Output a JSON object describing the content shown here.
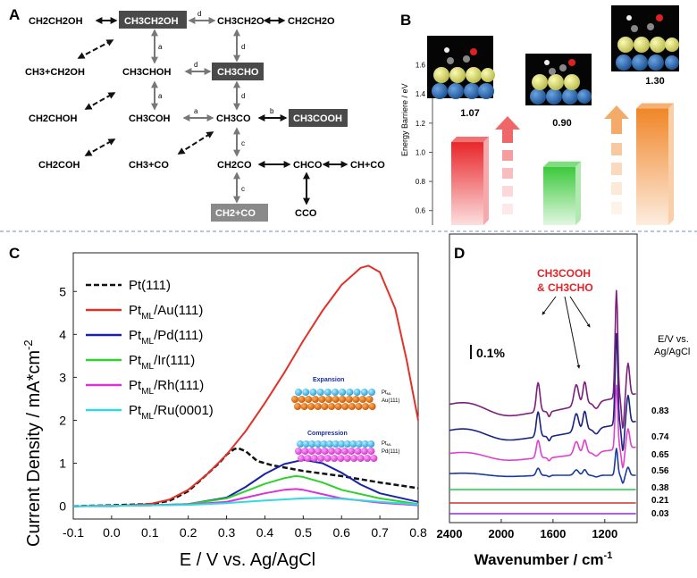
{
  "panel_labels": {
    "a": "A",
    "b": "B",
    "c": "C",
    "d": "D"
  },
  "scheme": {
    "species": {
      "ch2ch2oh": "CH2CH2OH",
      "ch3ch2oh": "CH3CH2OH",
      "ch3ch2o": "CH3CH2O",
      "ch2ch2o": "CH2CH2O",
      "ch3_ch2oh": "CH3+CH2OH",
      "ch3choh": "CH3CHOH",
      "ch3cho": "CH3CHO",
      "ch2choh": "CH2CHOH",
      "ch3coh": "CH3COH",
      "ch3co": "CH3CO",
      "ch3cooh": "CH3COOH",
      "ch2coh": "CH2COH",
      "ch3_co": "CH3+CO",
      "ch2co": "CH2CO",
      "chco": "CHCO",
      "ch_co": "CH+CO",
      "ch2_co": "CH2+CO",
      "cco": "CCO"
    },
    "arrow_labels": {
      "a": "a",
      "b": "b",
      "c": "c",
      "d": "d"
    }
  },
  "chart_data": [
    {
      "panel": "B",
      "type": "bar",
      "ylabel": "Energy Barriere / eV",
      "yticks": [
        0.6,
        0.8,
        1.0,
        1.2,
        1.4,
        1.6
      ],
      "ylim": [
        0.5,
        1.8
      ],
      "values": [
        1.07,
        0.9,
        1.3
      ],
      "value_labels": [
        "1.07",
        "0.90",
        "1.30"
      ],
      "colors": [
        "#e8262a",
        "#3cc93c",
        "#f08628"
      ]
    },
    {
      "panel": "C",
      "type": "line",
      "xlabel": "E / V vs. Ag/AgCl",
      "ylabel": "Current Density / mA*cm",
      "ylabel_sup": "-2",
      "xlim": [
        -0.1,
        0.8
      ],
      "ylim": [
        -0.3,
        5.9
      ],
      "xticks": [
        "-0.1",
        "0.0",
        "0.1",
        "0.2",
        "0.3",
        "0.4",
        "0.5",
        "0.6",
        "0.7",
        "0.8"
      ],
      "yticks": [
        "0",
        "1",
        "2",
        "3",
        "4",
        "5"
      ],
      "series": [
        {
          "name": "Pt(111)",
          "color": "#111111",
          "dash": true,
          "x": [
            -0.1,
            0.0,
            0.1,
            0.15,
            0.2,
            0.25,
            0.28,
            0.3,
            0.32,
            0.33,
            0.35,
            0.38,
            0.42,
            0.5,
            0.6,
            0.7,
            0.8
          ],
          "y": [
            0.0,
            0.02,
            0.05,
            0.12,
            0.35,
            0.75,
            1.0,
            1.2,
            1.33,
            1.35,
            1.28,
            1.05,
            0.95,
            0.82,
            0.7,
            0.55,
            0.42
          ]
        },
        {
          "name": "Au(111)",
          "color": "#e03228",
          "dash": false,
          "x": [
            -0.1,
            0.0,
            0.1,
            0.15,
            0.2,
            0.25,
            0.3,
            0.35,
            0.4,
            0.45,
            0.5,
            0.55,
            0.6,
            0.65,
            0.67,
            0.7,
            0.74,
            0.77,
            0.8
          ],
          "y": [
            0.0,
            0.0,
            0.05,
            0.15,
            0.38,
            0.75,
            1.2,
            1.75,
            2.4,
            3.1,
            3.85,
            4.55,
            5.15,
            5.55,
            5.6,
            5.45,
            4.6,
            3.4,
            2.0
          ]
        },
        {
          "name": "Pd(111)",
          "color": "#1a22a8",
          "dash": false,
          "x": [
            -0.1,
            0.1,
            0.2,
            0.3,
            0.35,
            0.4,
            0.45,
            0.5,
            0.55,
            0.6,
            0.65,
            0.7,
            0.8
          ],
          "y": [
            0.0,
            0.02,
            0.05,
            0.2,
            0.45,
            0.75,
            0.98,
            1.08,
            1.0,
            0.78,
            0.5,
            0.3,
            0.1
          ]
        },
        {
          "name": "Ir(111)",
          "color": "#2ed12e",
          "dash": false,
          "x": [
            -0.1,
            0.1,
            0.2,
            0.3,
            0.35,
            0.4,
            0.45,
            0.48,
            0.5,
            0.55,
            0.6,
            0.7,
            0.8
          ],
          "y": [
            0.0,
            0.02,
            0.05,
            0.18,
            0.35,
            0.52,
            0.65,
            0.7,
            0.68,
            0.55,
            0.38,
            0.18,
            0.05
          ]
        },
        {
          "name": "Rh(111)",
          "color": "#d932d9",
          "dash": false,
          "x": [
            -0.1,
            0.1,
            0.2,
            0.3,
            0.35,
            0.4,
            0.45,
            0.48,
            0.5,
            0.55,
            0.6,
            0.7,
            0.8
          ],
          "y": [
            0.0,
            0.02,
            0.04,
            0.1,
            0.2,
            0.3,
            0.38,
            0.4,
            0.38,
            0.28,
            0.18,
            0.08,
            0.02
          ]
        },
        {
          "name": "Ru(0001)",
          "color": "#33d8e0",
          "dash": false,
          "x": [
            -0.1,
            0.1,
            0.2,
            0.3,
            0.4,
            0.5,
            0.55,
            0.6,
            0.7,
            0.8
          ],
          "y": [
            0.0,
            0.02,
            0.03,
            0.07,
            0.13,
            0.18,
            0.19,
            0.17,
            0.1,
            0.04
          ]
        }
      ],
      "legend": {
        "labels": [
          "Pt(111)",
          "Pt",
          "Pt",
          "Pt",
          "Pt",
          "Pt"
        ],
        "subs": [
          "",
          "ML",
          "ML",
          "ML",
          "ML",
          "ML"
        ],
        "suffixes": [
          "",
          "/Au(111)",
          "/Pd(111)",
          "/Ir(111)",
          "/Rh(111)",
          "/Ru(0001)"
        ]
      },
      "insets": {
        "expansion": "Expansion",
        "compression": "Compression",
        "pt_ml": "Pt",
        "ml": "ML",
        "au": "Au(111)",
        "pd": "Pd(111)"
      }
    },
    {
      "panel": "D",
      "type": "line",
      "xlabel": "Wavenumber / cm",
      "xlabel_sup": "-1",
      "xticks": [
        "2400",
        "2000",
        "1600",
        "1200"
      ],
      "xlim": [
        2400,
        950
      ],
      "scalebar_label": "0.1%",
      "annotation": {
        "line1": "CH3COOH",
        "line2": "& CH3CHO"
      },
      "potential_header": {
        "line1": "E/V vs.",
        "line2": "Ag/AgCl"
      },
      "series": [
        {
          "name": "0.03",
          "color": "#8a2be2",
          "amp": 0.0
        },
        {
          "name": "0.21",
          "color": "#d43030",
          "amp": 0.0
        },
        {
          "name": "0.38",
          "color": "#22cc44",
          "amp": 0.0
        },
        {
          "name": "0.56",
          "color": "#1a3aa0",
          "amp": 0.25
        },
        {
          "name": "0.65",
          "color": "#e040d0",
          "amp": 0.6
        },
        {
          "name": "0.74",
          "color": "#1a237e",
          "amp": 0.85
        },
        {
          "name": "0.83",
          "color": "#7b1f7b",
          "amp": 1.0
        }
      ]
    }
  ]
}
